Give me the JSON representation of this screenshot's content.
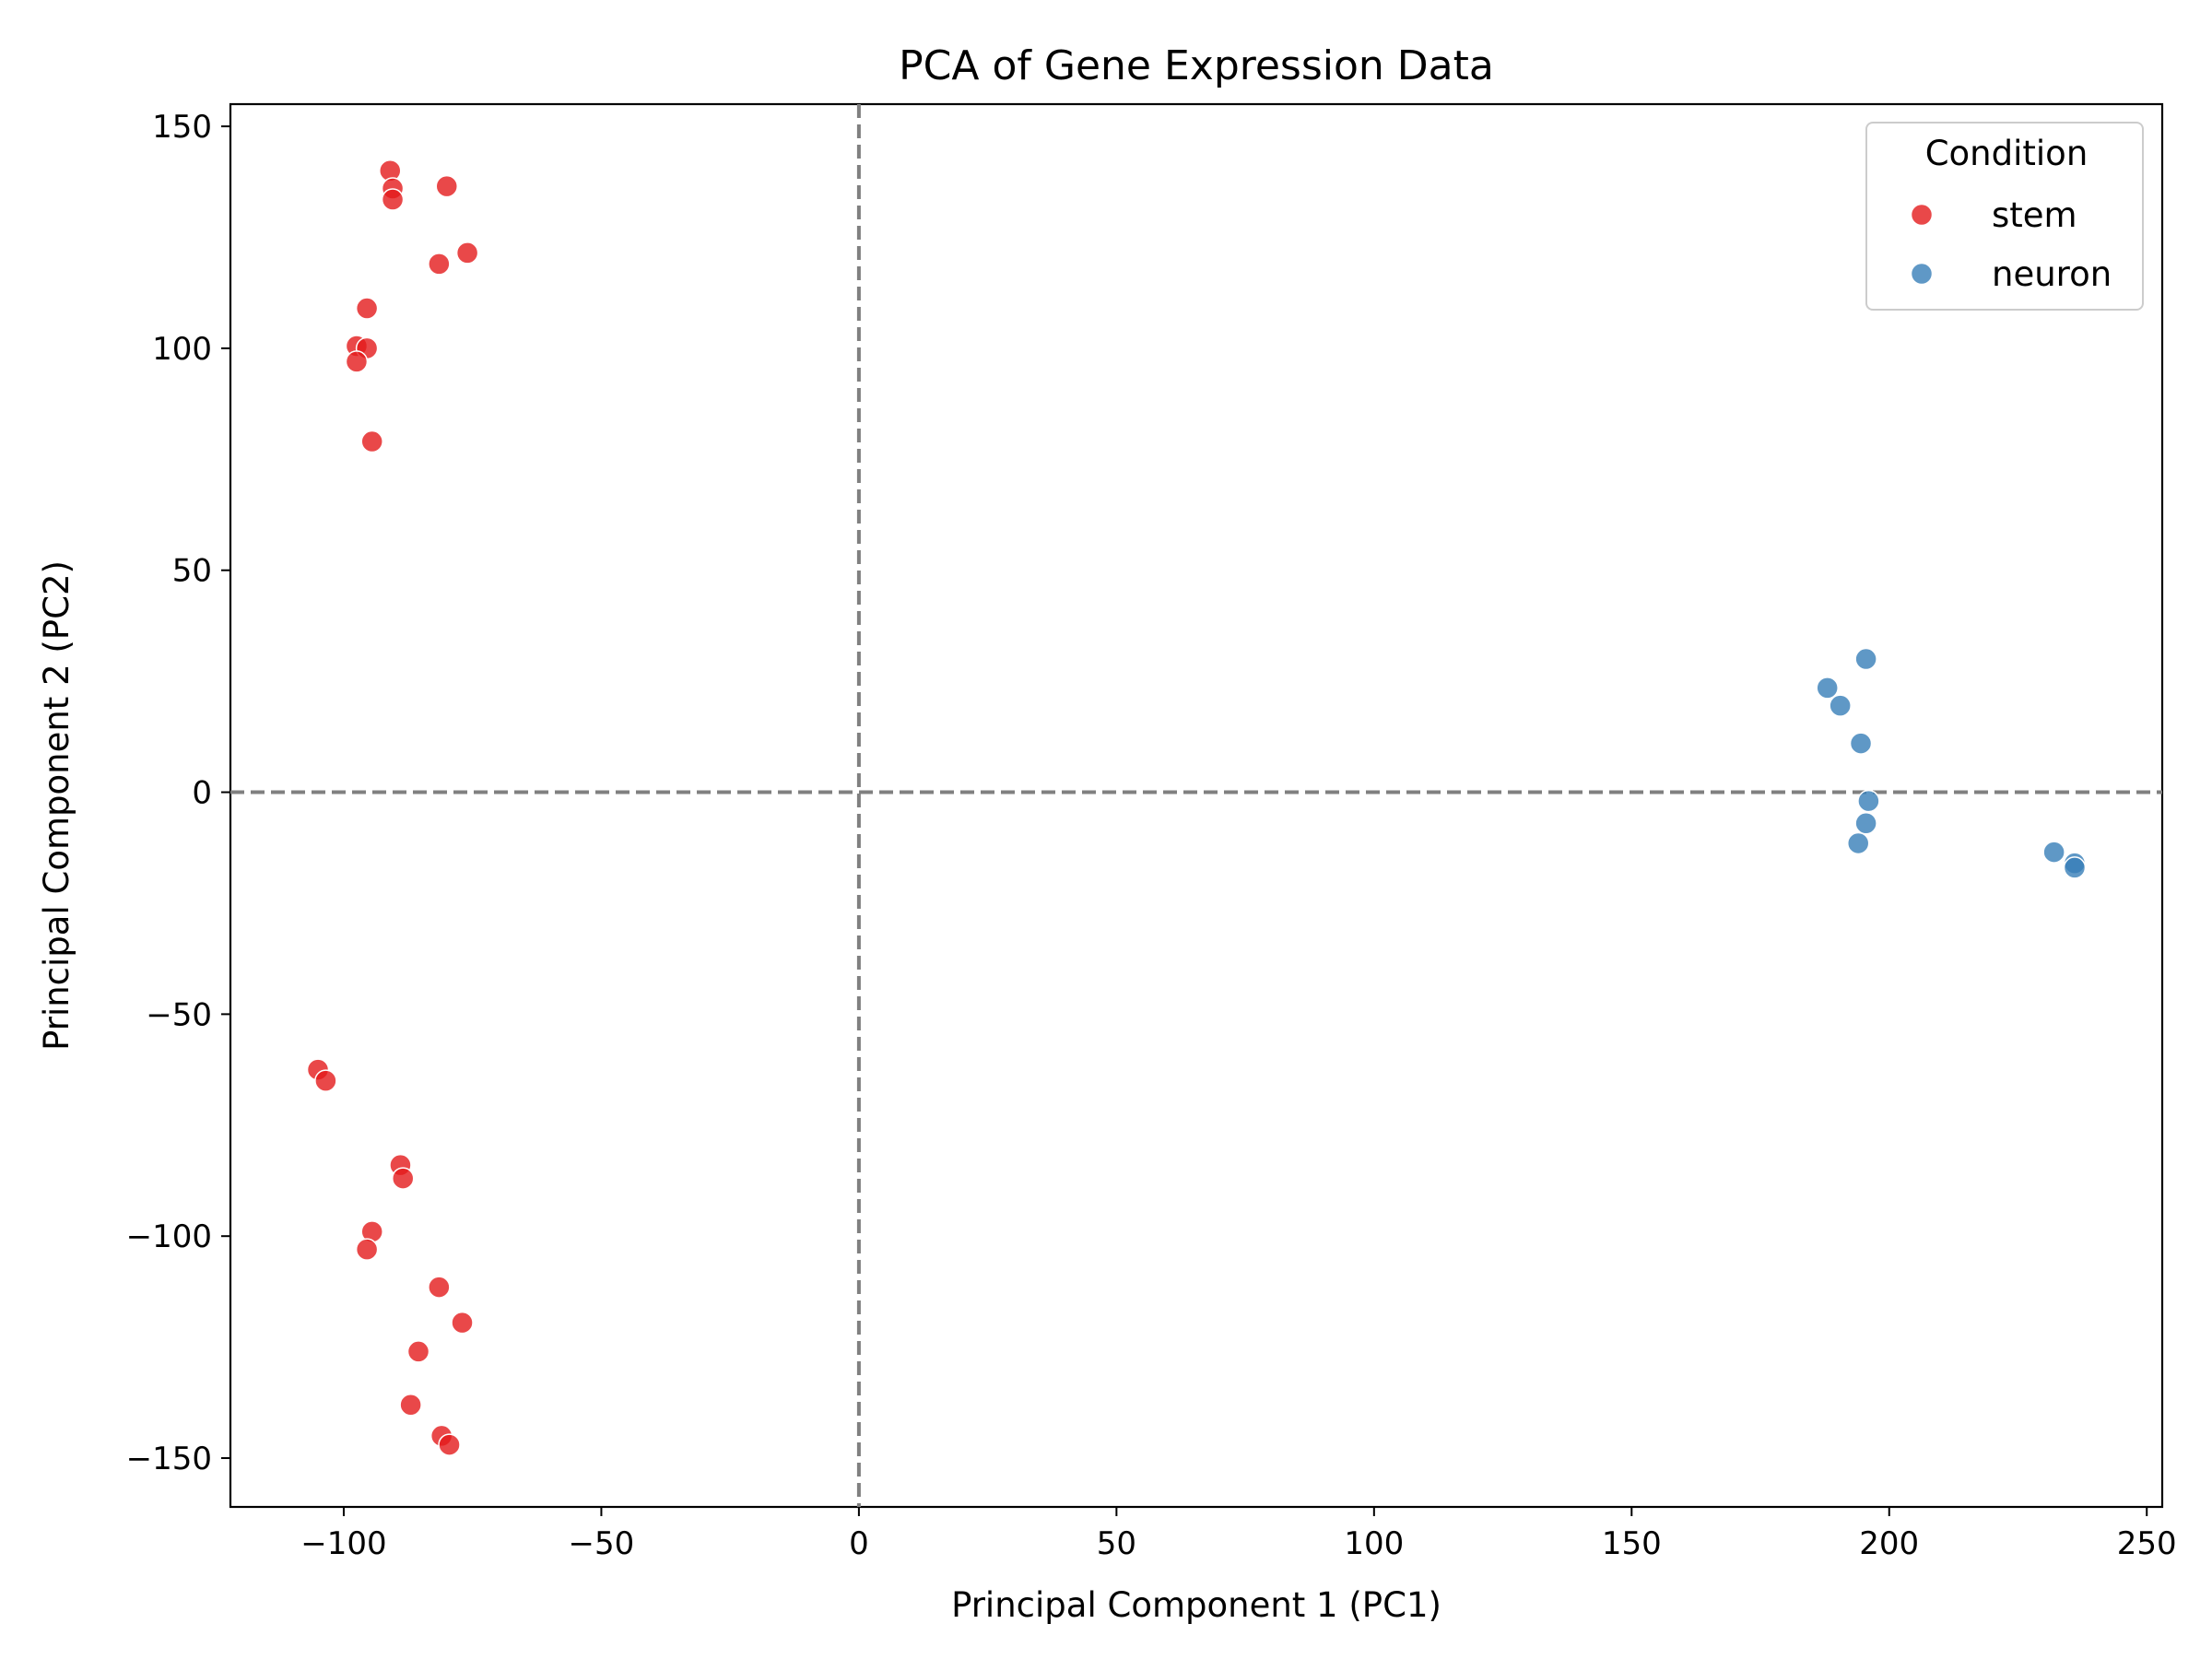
{
  "chart_data": {
    "type": "scatter",
    "title": "PCA of Gene Expression Data",
    "xlabel": "Principal Component 1 (PC1)",
    "ylabel": "Principal Component 2 (PC2)",
    "xlim": [
      -122,
      253
    ],
    "ylim": [
      -161,
      155
    ],
    "xticks": [
      -100,
      -50,
      0,
      50,
      100,
      150,
      200,
      250
    ],
    "yticks": [
      -150,
      -100,
      -50,
      0,
      50,
      100,
      150
    ],
    "xtick_labels": [
      "−100",
      "−50",
      "0",
      "50",
      "100",
      "150",
      "200",
      "250"
    ],
    "ytick_labels": [
      "−150",
      "−100",
      "−50",
      "0",
      "50",
      "100",
      "150"
    ],
    "grid": false,
    "reference_lines": {
      "x": 0,
      "y": 0,
      "style": "dashed",
      "color": "#808080"
    },
    "legend": {
      "title": "Condition",
      "placement": "top-right"
    },
    "series": [
      {
        "name": "stem",
        "color": "#e41a1c",
        "points": [
          [
            -91,
            140
          ],
          [
            -90.5,
            136
          ],
          [
            -90.5,
            133.5
          ],
          [
            -80,
            136.5
          ],
          [
            -76,
            121.5
          ],
          [
            -81.5,
            119
          ],
          [
            -95.5,
            109
          ],
          [
            -97.5,
            100.5
          ],
          [
            -95.5,
            100
          ],
          [
            -97.5,
            97
          ],
          [
            -94.5,
            79
          ],
          [
            -105,
            -62.5
          ],
          [
            -103.5,
            -65
          ],
          [
            -89,
            -84
          ],
          [
            -88.5,
            -87
          ],
          [
            -94.5,
            -99
          ],
          [
            -95.5,
            -103
          ],
          [
            -81.5,
            -111.5
          ],
          [
            -77,
            -119.5
          ],
          [
            -85.5,
            -126
          ],
          [
            -87,
            -138
          ],
          [
            -81,
            -145
          ],
          [
            -79.5,
            -147
          ]
        ]
      },
      {
        "name": "neuron",
        "color": "#377eb8",
        "points": [
          [
            195.5,
            30
          ],
          [
            188,
            23.5
          ],
          [
            190.5,
            19.5
          ],
          [
            194.5,
            11
          ],
          [
            196,
            -2
          ],
          [
            195.5,
            -7
          ],
          [
            194,
            -11.5
          ],
          [
            232,
            -13.5
          ],
          [
            236,
            -16
          ],
          [
            236,
            -17
          ]
        ]
      }
    ]
  }
}
